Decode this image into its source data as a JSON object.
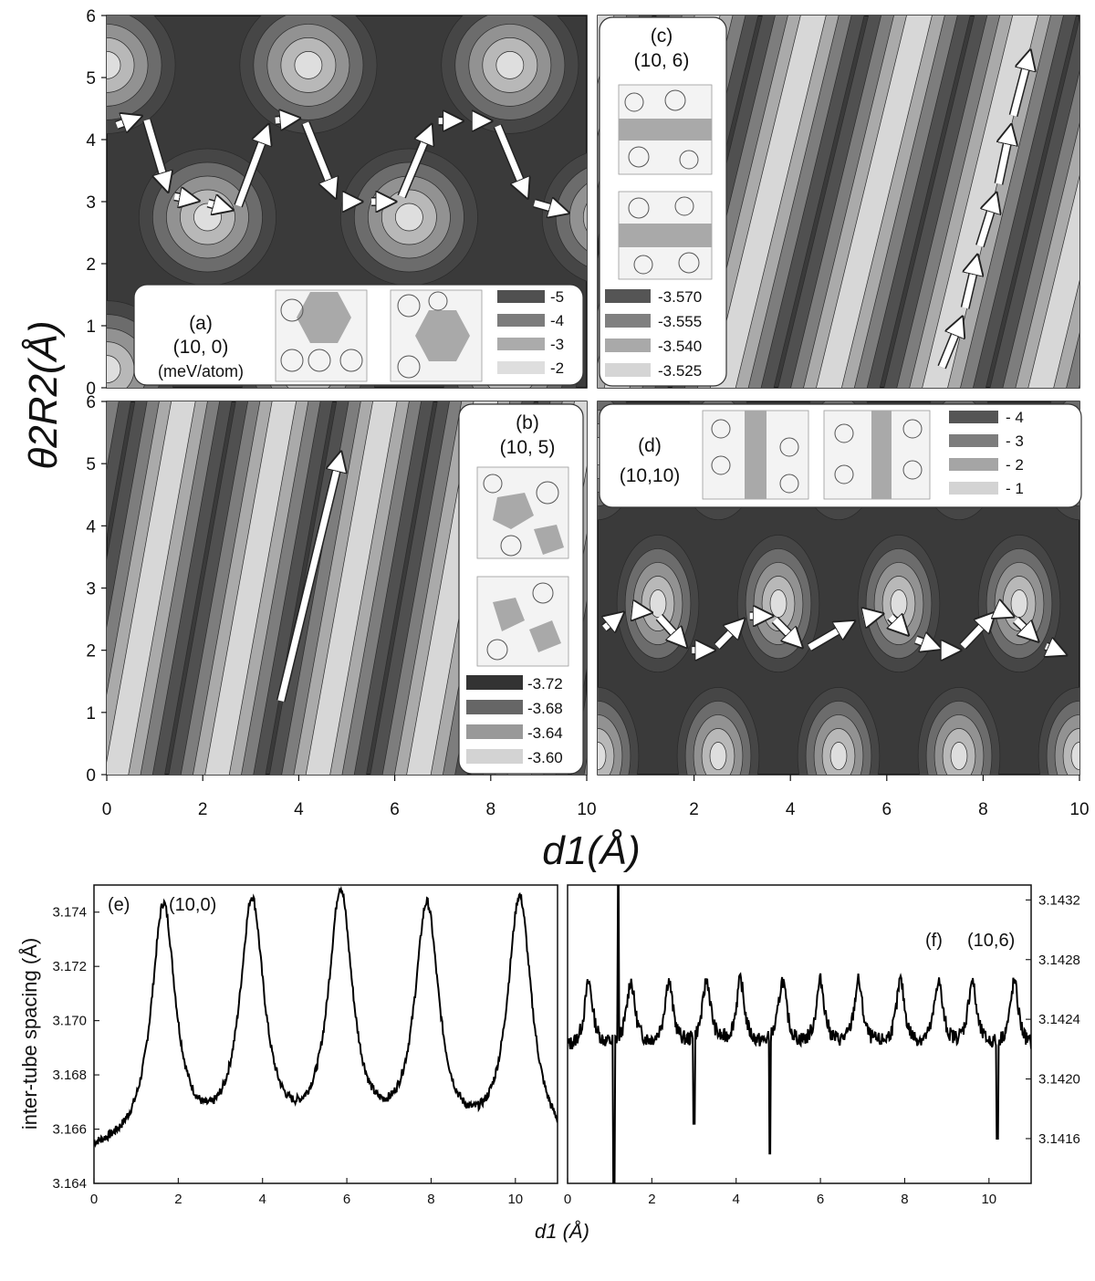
{
  "chart_data": [
    {
      "id": "a",
      "type": "heatmap",
      "panel_label": "(a)",
      "tube": "(10, 0)",
      "units": "(meV/atom)",
      "xlim": [
        0,
        10
      ],
      "ylim": [
        0,
        6
      ],
      "pattern": "hexagonal",
      "period_x": 4.2,
      "period_y": 2.45,
      "legend": [
        {
          "value": "-5",
          "color": "#505050"
        },
        {
          "value": "-4",
          "color": "#7c7c7c"
        },
        {
          "value": "-3",
          "color": "#ababab"
        },
        {
          "value": "-2",
          "color": "#dedede"
        }
      ],
      "path": [
        [
          0.1,
          4.2
        ],
        [
          0.8,
          4.4
        ],
        [
          1.3,
          3.1
        ],
        [
          2,
          3.0
        ],
        [
          2.7,
          2.85
        ],
        [
          3.4,
          4.3
        ],
        [
          4.1,
          4.35
        ],
        [
          4.8,
          3.0
        ],
        [
          5.4,
          3.0
        ],
        [
          6.1,
          3.0
        ],
        [
          6.8,
          4.3
        ],
        [
          7.5,
          4.3
        ],
        [
          8.1,
          4.3
        ],
        [
          8.8,
          3.0
        ],
        [
          9.7,
          2.8
        ]
      ]
    },
    {
      "id": "b",
      "type": "heatmap",
      "panel_label": "(b)",
      "tube": "(10, 5)",
      "xlim": [
        0,
        10
      ],
      "ylim": [
        0,
        6
      ],
      "pattern": "stripes",
      "stripe_slope": 4.3,
      "stripe_period": 2.1,
      "legend": [
        {
          "value": "-3.72",
          "color": "#333333"
        },
        {
          "value": "-3.68",
          "color": "#666666"
        },
        {
          "value": "-3.64",
          "color": "#999999"
        },
        {
          "value": "-3.60",
          "color": "#d3d3d3"
        }
      ],
      "path": [
        [
          3.6,
          1.1
        ],
        [
          4.9,
          5.25
        ]
      ]
    },
    {
      "id": "c",
      "type": "heatmap",
      "panel_label": "(c)",
      "tube": "(10, 6)",
      "xlim": [
        0,
        10
      ],
      "ylim": [
        0,
        6
      ],
      "pattern": "stripes",
      "stripe_slope": 3.2,
      "stripe_period": 2.2,
      "legend": [
        {
          "value": "-3.570",
          "color": "#555555"
        },
        {
          "value": "-3.555",
          "color": "#808080"
        },
        {
          "value": "-3.540",
          "color": "#a9a9a9"
        },
        {
          "value": "-3.525",
          "color": "#d5d5d5"
        }
      ],
      "path": [
        [
          7.1,
          0.25
        ],
        [
          7.6,
          1.2
        ],
        [
          7.9,
          2.2
        ],
        [
          8.3,
          3.2
        ],
        [
          8.6,
          4.3
        ],
        [
          9.0,
          5.5
        ]
      ]
    },
    {
      "id": "d",
      "type": "heatmap",
      "panel_label": "(d)",
      "tube": "(10,10)",
      "xlim": [
        0,
        10
      ],
      "ylim": [
        0,
        6
      ],
      "pattern": "hexagonal",
      "period_x": 2.5,
      "period_y": 2.45,
      "legend": [
        {
          "value": "- 4",
          "color": "#555555"
        },
        {
          "value": "- 3",
          "color": "#7d7d7d"
        },
        {
          "value": "- 2",
          "color": "#a5a5a5"
        },
        {
          "value": "- 1",
          "color": "#d3d3d3"
        }
      ],
      "path": [
        [
          0.05,
          2.3
        ],
        [
          0.6,
          2.65
        ],
        [
          1.2,
          2.6
        ],
        [
          1.9,
          2.0
        ],
        [
          2.4,
          2.0
        ],
        [
          3.1,
          2.55
        ],
        [
          3.6,
          2.55
        ],
        [
          4.3,
          2.0
        ],
        [
          5.4,
          2.5
        ],
        [
          6.0,
          2.6
        ],
        [
          6.5,
          2.2
        ],
        [
          7.2,
          2.0
        ],
        [
          7.5,
          2.0
        ],
        [
          8.3,
          2.65
        ],
        [
          8.6,
          2.55
        ],
        [
          9.2,
          2.1
        ],
        [
          9.8,
          1.9
        ]
      ]
    },
    {
      "id": "e",
      "type": "line",
      "panel_label": "(e)",
      "tube": "(10,0)",
      "xlim": [
        0,
        11
      ],
      "ylim": [
        3.164,
        3.175
      ],
      "baseline": 3.165,
      "peaks": [
        1.65,
        3.75,
        5.85,
        7.9,
        10.1
      ],
      "peak_values": [
        3.174,
        3.174,
        3.1743,
        3.1738,
        3.1743
      ],
      "x_ticks": [
        "0",
        "2",
        "4",
        "6",
        "8",
        "10"
      ],
      "y_ticks": [
        "3.164",
        "3.166",
        "3.168",
        "3.170",
        "3.172",
        "3.174"
      ]
    },
    {
      "id": "f",
      "type": "line",
      "panel_label": "(f)",
      "tube": "(10,6)",
      "xlim": [
        0,
        11
      ],
      "ylim": [
        3.1413,
        3.1433
      ],
      "baseline": 3.1422,
      "peaks": [
        0.5,
        1.5,
        2.4,
        3.3,
        4.1,
        5.1,
        6.0,
        6.9,
        7.9,
        8.8,
        9.6,
        10.6
      ],
      "spikes": [
        [
          1.1,
          3.1413
        ],
        [
          1.2,
          3.1433
        ],
        [
          3.0,
          3.1417
        ],
        [
          4.8,
          3.1415
        ],
        [
          10.2,
          3.1416
        ]
      ],
      "x_ticks": [
        "0",
        "2",
        "4",
        "6",
        "8",
        "10"
      ],
      "y_ticks": [
        "3.1416",
        "3.1420",
        "3.1424",
        "3.1428",
        "3.1432"
      ]
    }
  ],
  "axes": {
    "top_ylabel": "θ2R2(Å)",
    "top_xlabel": "d1(Å)",
    "top_y_ticks": [
      "0",
      "1",
      "2",
      "3",
      "4",
      "5",
      "6"
    ],
    "top_x_ticks_left": [
      "0",
      "2",
      "4",
      "6",
      "8",
      "10"
    ],
    "top_x_ticks_right": [
      "2",
      "4",
      "6",
      "8",
      "10"
    ],
    "bottom_ylabel": "inter-tube spacing (Å)",
    "bottom_xlabel": "d1 (Å)"
  }
}
